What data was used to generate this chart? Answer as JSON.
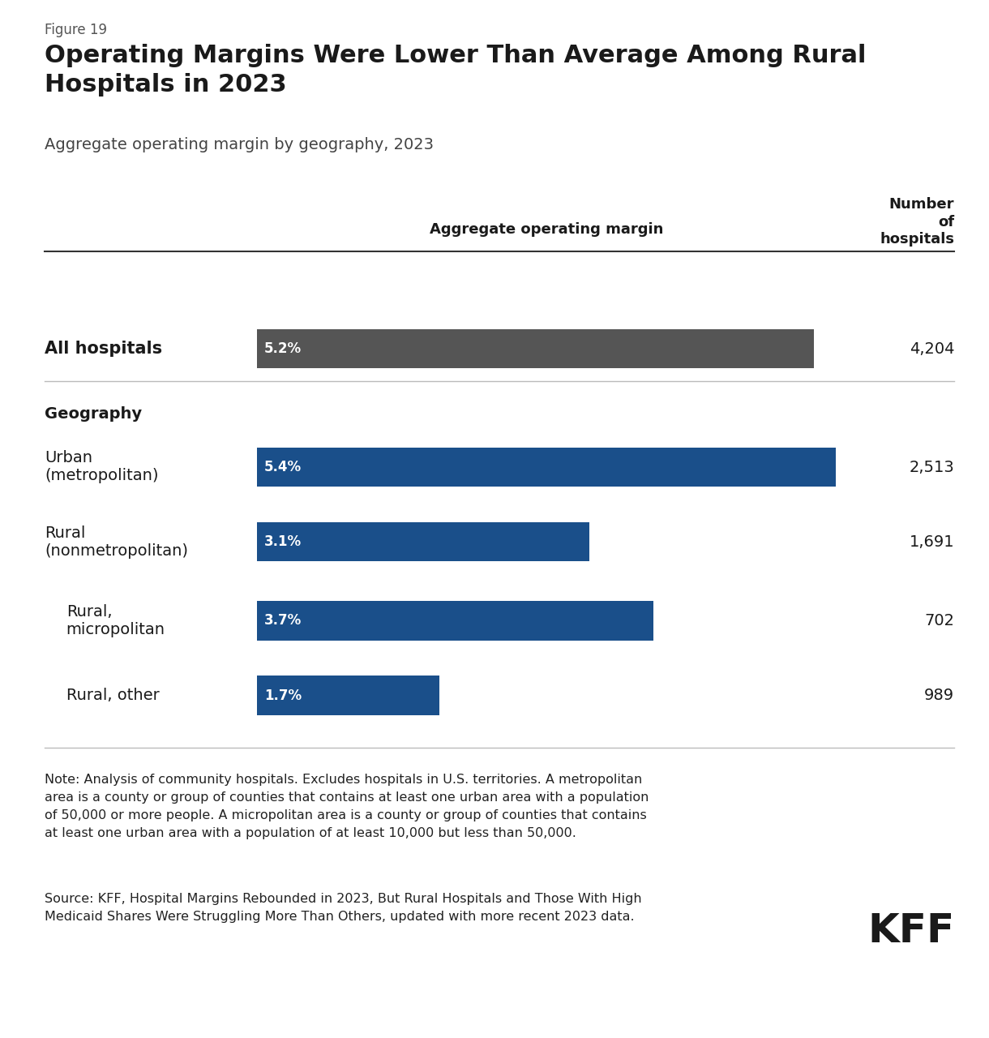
{
  "figure_label": "Figure 19",
  "title": "Operating Margins Were Lower Than Average Among Rural\nHospitals in 2023",
  "subtitle": "Aggregate operating margin by geography, 2023",
  "col_header_margin": "Aggregate operating margin",
  "col_header_hospitals": "Number\nof\nhospitals",
  "rows": [
    {
      "label": "All hospitals",
      "label_bold": true,
      "value": 5.2,
      "value_str": "5.2%",
      "hospitals": "4,204",
      "bar_color": "#555555",
      "indent": false,
      "is_header": false,
      "group": "all"
    },
    {
      "label": "Geography",
      "label_bold": true,
      "value": null,
      "value_str": null,
      "hospitals": null,
      "bar_color": null,
      "indent": false,
      "is_header": true,
      "group": "geo_header"
    },
    {
      "label": "Urban\n(metropolitan)",
      "label_bold": false,
      "value": 5.4,
      "value_str": "5.4%",
      "hospitals": "2,513",
      "bar_color": "#1a4f8a",
      "indent": false,
      "is_header": false,
      "group": "geo"
    },
    {
      "label": "Rural\n(nonmetropolitan)",
      "label_bold": false,
      "value": 3.1,
      "value_str": "3.1%",
      "hospitals": "1,691",
      "bar_color": "#1a4f8a",
      "indent": false,
      "is_header": false,
      "group": "geo"
    },
    {
      "label": "Rural,\nmicropolitan",
      "label_bold": false,
      "value": 3.7,
      "value_str": "3.7%",
      "hospitals": "702",
      "bar_color": "#1a4f8a",
      "indent": true,
      "is_header": false,
      "group": "geo"
    },
    {
      "label": "Rural, other",
      "label_bold": false,
      "value": 1.7,
      "value_str": "1.7%",
      "hospitals": "989",
      "bar_color": "#1a4f8a",
      "indent": true,
      "is_header": false,
      "group": "geo"
    }
  ],
  "max_bar_value": 5.4,
  "note_text": "Note: Analysis of community hospitals. Excludes hospitals in U.S. territories. A metropolitan\narea is a county or group of counties that contains at least one urban area with a population\nof 50,000 or more people. A micropolitan area is a county or group of counties that contains\nat least one urban area with a population of at least 10,000 but less than 50,000.",
  "source_text": "Source: KFF, Hospital Margins Rebounded in 2023, But Rural Hospitals and Those With High\nMedicaid Shares Were Struggling More Than Others, updated with more recent 2023 data.",
  "background_color": "#ffffff",
  "text_color": "#1a1a1a",
  "kff_logo_text": "KFF"
}
